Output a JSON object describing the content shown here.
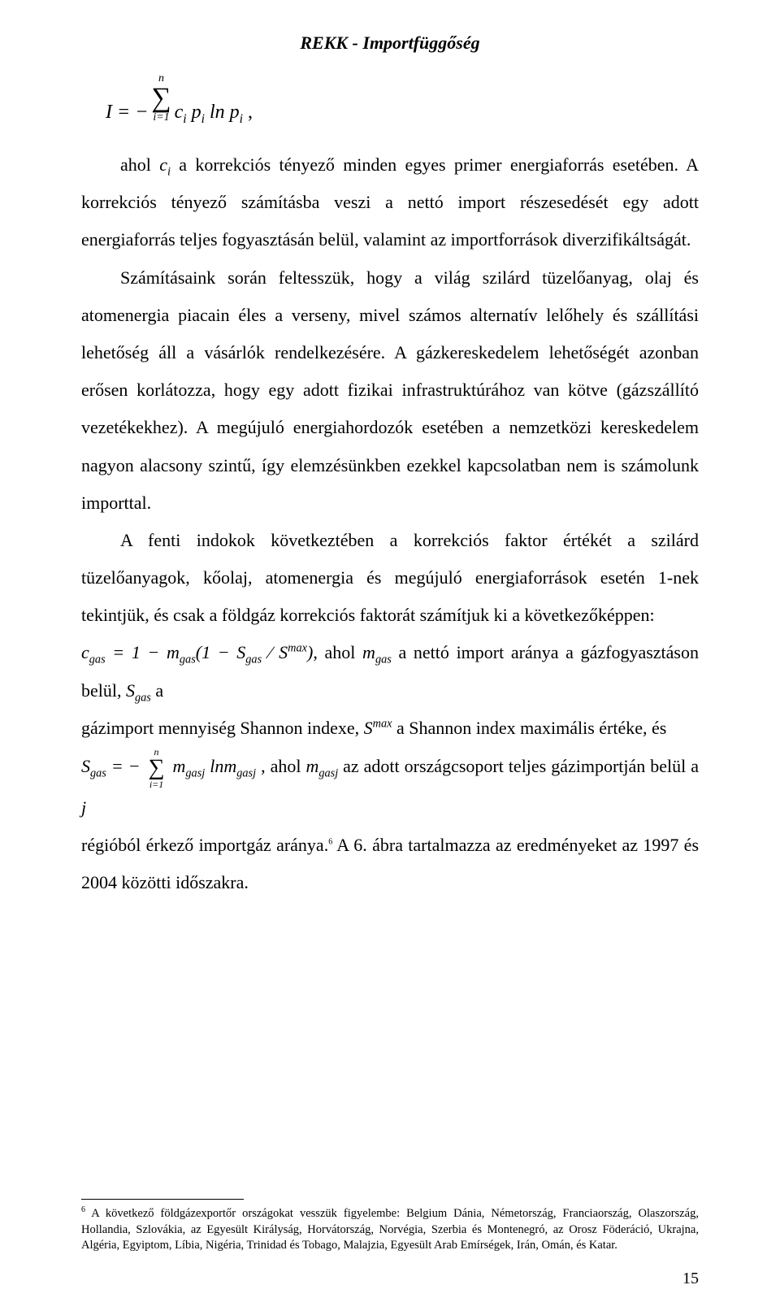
{
  "header": {
    "title": "REKK  -  Importfüggőség"
  },
  "formula1": {
    "lhs": "I = −",
    "sum_top": "n",
    "sum_bottom": "i=1",
    "rhs": "c",
    "rhs2": "p",
    "rhs3": " ln p",
    "comma": " ,"
  },
  "para1": {
    "lead": "ahol ",
    "ci": "c",
    "ci_sub": "i",
    "rest": " a korrekciós tényező minden egyes primer energiaforrás esetében. A korrekciós tényező számításba veszi a nettó import részesedését egy adott energiaforrás teljes fogyasztásán belül, valamint az importforrások diverzifikáltságát."
  },
  "para2": "Számításaink során feltesszük, hogy a világ szilárd tüzelőanyag, olaj és atomenergia piacain éles a verseny, mivel számos alternatív lelőhely és szállítási lehetőség áll a vásárlók rendelkezésére. A gázkereskedelem lehetőségét azonban erősen korlátozza, hogy egy adott fizikai infrastruktúrához van kötve (gázszállító vezetékekhez). A megújuló energiahordozók esetében a nemzetközi kereskedelem nagyon alacsony szintű, így elemzésünkben ezekkel kapcsolatban nem is számolunk importtal.",
  "para3": "A fenti indokok következtében a korrekciós faktor értékét a szilárd tüzelőanyagok, kőolaj, atomenergia és megújuló energiaforrások esetén 1-nek tekintjük, és csak a földgáz korrekciós faktorát számítjuk ki a következőképpen:",
  "formula2": {
    "text1": "c",
    "sub1": "gas",
    "text2": " = 1 − m",
    "sub2": "gas",
    "paren_open": "(1 − S",
    "sub3": "gas",
    "slash": " ∕ S",
    "sup1": "max",
    "paren_close": ")",
    "after1": ", ahol ",
    "m_gas": "m",
    "m_gas_sub": "gas",
    "after2": " a nettó import aránya a gázfogyasztáson belül, ",
    "S_gas": "S",
    "S_gas_sub": "gas",
    "after3": " a"
  },
  "line_cont1": {
    "t1": "gázimport mennyiség Shannon indexe, ",
    "S": "S",
    "sup": "max",
    "t2": " a Shannon index maximális értéke, és"
  },
  "formula3": {
    "S": "S",
    "S_sub": "gas",
    "eq": " = −",
    "sum_top": "n",
    "sum_bottom": "i=1",
    "m1": "m",
    "m1_sub": "gasj",
    "ln": " ln",
    "m2": "m",
    "m2_sub": "gasj",
    "after1": " , ahol ",
    "m3": "m",
    "m3_sub": "gasj",
    "after2": " az adott országcsoport teljes gázimportján belül a ",
    "j": "j"
  },
  "para4": {
    "t1": "régióból érkező importgáz aránya.",
    "fn_mark": "6",
    "t2": " A 6.  ábra tartalmazza az eredményeket az 1997 és 2004 közötti időszakra."
  },
  "footnote": {
    "mark": "6",
    "text": " A következő földgázexportőr országokat vesszük figyelembe: Belgium Dánia, Németország, Franciaország, Olaszország, Hollandia, Szlovákia, az Egyesült Királyság, Horvátország, Norvégia, Szerbia és Montenegró, az Orosz Föderáció, Ukrajna, Algéria, Egyiptom, Líbia, Nigéria, Trinidad és Tobago, Malajzia, Egyesült Arab Emírségek, Irán, Omán, és Katar."
  },
  "page_number": "15"
}
